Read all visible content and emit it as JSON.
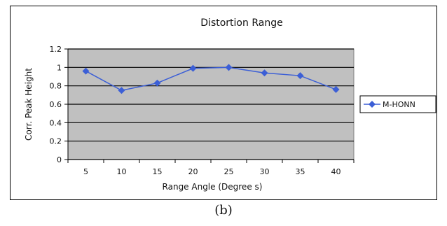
{
  "chart_data": {
    "type": "line",
    "title": "Distortion Range",
    "xlabel": "Range Angle (Degree s)",
    "ylabel": "Corr. Peak Height",
    "categories": [
      "5",
      "10",
      "15",
      "20",
      "25",
      "30",
      "35",
      "40"
    ],
    "series": [
      {
        "name": "M-HONN",
        "values": [
          0.96,
          0.75,
          0.83,
          0.99,
          1.0,
          0.94,
          0.91,
          0.76
        ]
      }
    ],
    "ylim": [
      0,
      1.2
    ],
    "yticks": [
      "0",
      "0.2",
      "0.4",
      "0.6",
      "0.8",
      "1",
      "1.2"
    ],
    "grid": true,
    "legend": "right",
    "colors": {
      "series": "#3c5fd6",
      "plot_bg": "#c0c0c0",
      "grid": "#000000"
    }
  },
  "caption": "(b)"
}
